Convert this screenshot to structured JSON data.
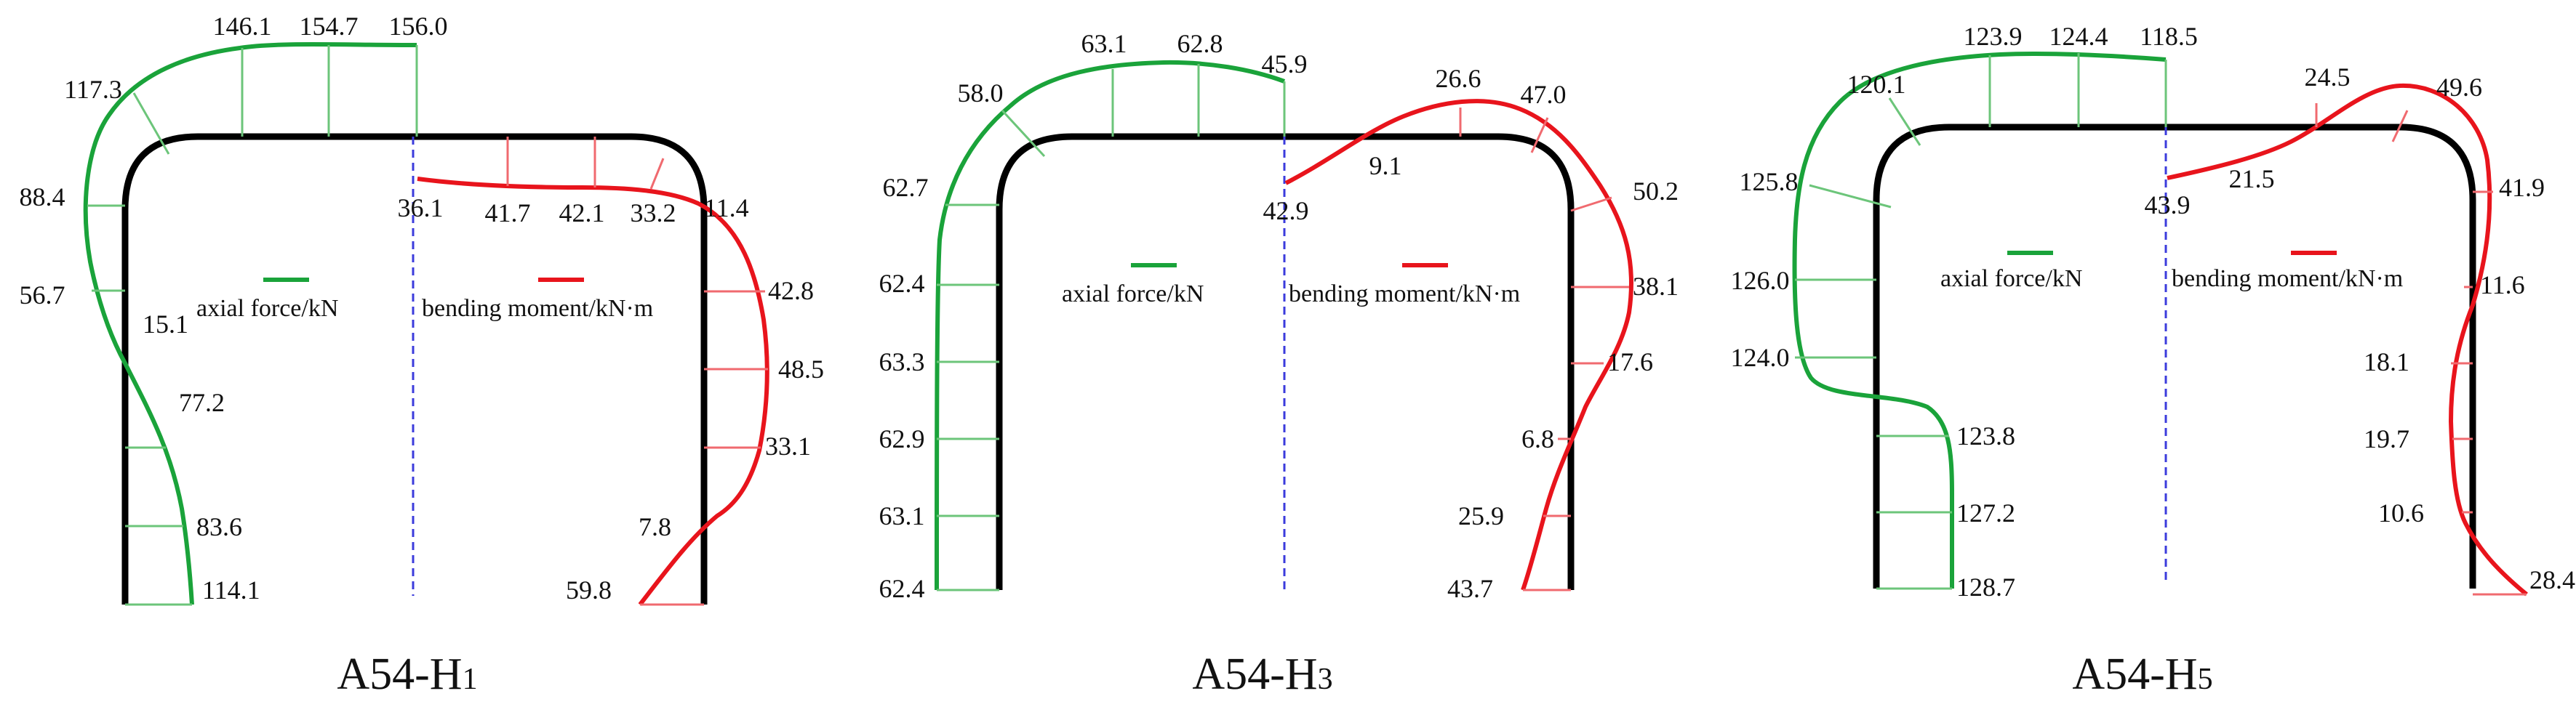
{
  "colors": {
    "frame": "#000000",
    "axial": "#1aa33a",
    "moment": "#e8141c",
    "centerline": "#3b3bdc",
    "text": "#111111"
  },
  "panels": [
    {
      "caption": {
        "main": "A54-H",
        "sub": "1"
      },
      "legend": {
        "axial": "axial force/kN",
        "moment": "bending moment/kN·m"
      },
      "axial_values": [
        "146.1",
        "154.7",
        "156.0",
        "117.3",
        "88.4",
        "56.7",
        "15.1",
        "77.2",
        "83.6",
        "114.1"
      ],
      "moment_values": [
        "36.1",
        "41.7",
        "42.1",
        "33.2",
        "11.4",
        "42.8",
        "48.5",
        "33.1",
        "7.8",
        "59.8"
      ]
    },
    {
      "caption": {
        "main": "A54-H",
        "sub": "3"
      },
      "legend": {
        "axial": "axial force/kN",
        "moment": "bending moment/kN·m"
      },
      "axial_values": [
        "63.1",
        "62.8",
        "45.9",
        "58.0",
        "62.7",
        "62.4",
        "63.3",
        "62.9",
        "63.1",
        "62.4"
      ],
      "moment_values": [
        "26.6",
        "47.0",
        "9.1",
        "42.9",
        "50.2",
        "38.1",
        "17.6",
        "6.8",
        "25.9",
        "43.7"
      ]
    },
    {
      "caption": {
        "main": "A54-H",
        "sub": "5"
      },
      "legend": {
        "axial": "axial force/kN",
        "moment": "bending moment/kN·m"
      },
      "axial_values": [
        "123.9",
        "124.4",
        "118.5",
        "120.1",
        "125.8",
        "126.0",
        "124.0",
        "123.8",
        "127.2",
        "128.7"
      ],
      "moment_values": [
        "24.5",
        "49.6",
        "21.5",
        "43.9",
        "41.9",
        "11.6",
        "18.1",
        "19.7",
        "10.6",
        "28.4"
      ]
    }
  ]
}
